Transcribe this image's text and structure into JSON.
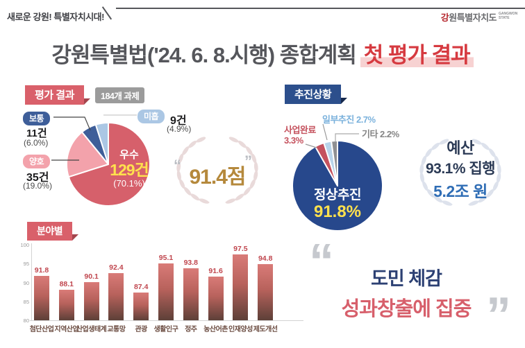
{
  "colors": {
    "accent_red": "#d63a40",
    "badge_red": "#d9606a",
    "badge_navy": "#2c4f8c",
    "badge_gray": "#9b9b9b",
    "highlight_yellow": "#ffe14d",
    "gold": "#b5893c",
    "quote_navy": "#2c4073",
    "quote_red": "#d75f6b"
  },
  "header": {
    "tagline": "새로운 강원! 특별자치시대!",
    "logo_first": "강",
    "logo_rest": "원특별자치도",
    "logo_sub": "GANGWON STATE",
    "title_main": "강원특별법('24. 6. 8.시행) 종합계획",
    "title_accent": "첫 평가 결과"
  },
  "eval": {
    "badge": "평가 결과",
    "tasks_badge": "184개 과제",
    "center": {
      "label": "우수",
      "value": "129건",
      "pct": "(70.1%)"
    },
    "items": [
      {
        "name": "보통",
        "count": "11건",
        "pct": "(6.0%)"
      },
      {
        "name": "양호",
        "count": "35건",
        "pct": "(19.0%)"
      },
      {
        "name": "미흡",
        "count": "9건",
        "pct": "(4.9%)"
      }
    ],
    "score": "91.4점",
    "quote_open": "“",
    "quote_close": "”"
  },
  "progress": {
    "badge": "추진상황",
    "center": {
      "label": "정상추진",
      "value": "91.8%"
    },
    "labels": [
      {
        "name": "사업완료",
        "value": "3.3%"
      },
      {
        "name": "일부추진",
        "value": "2.7%"
      },
      {
        "name": "기타",
        "value": "2.2%"
      }
    ],
    "budget": {
      "line1": "예산",
      "line2": "93.1% 집행",
      "line3": "5.2조 원"
    }
  },
  "field": {
    "badge": "분야별"
  },
  "quote": {
    "open": "“",
    "close": "”",
    "line1": "도민 체감",
    "line2": "성과창출에 집중"
  },
  "chart_data": [
    {
      "type": "pie",
      "title": "평가 결과 (184개 과제)",
      "labels": [
        "우수",
        "양호",
        "보통",
        "미흡"
      ],
      "values": [
        70.1,
        19.0,
        6.0,
        4.9
      ],
      "counts": [
        129,
        35,
        11,
        9
      ],
      "colors": [
        "#d6606b",
        "#f3a2ab",
        "#3e5e99",
        "#abc7e4"
      ],
      "unit": "%"
    },
    {
      "type": "pie",
      "title": "추진상황",
      "labels": [
        "정상추진",
        "사업완료",
        "일부추진",
        "기타"
      ],
      "values": [
        91.8,
        3.3,
        2.7,
        2.2
      ],
      "colors": [
        "#27488c",
        "#c5525e",
        "#b8d4ea",
        "#8f9093"
      ],
      "unit": "%"
    },
    {
      "type": "bar",
      "title": "분야별",
      "categories": [
        "첨단산업",
        "지역산업",
        "산업생태계",
        "교통망",
        "관광",
        "생활인구",
        "정주",
        "농산어촌",
        "인재양성",
        "제도개선"
      ],
      "values": [
        91.8,
        88.1,
        90.1,
        92.4,
        87.4,
        95.1,
        93.8,
        91.6,
        97.5,
        94.8
      ],
      "yticks": [
        100,
        95,
        90,
        85,
        80
      ],
      "ylim": [
        80,
        100
      ],
      "bar_color_top": "#d87272",
      "bar_color_bottom": "#5d4038",
      "value_label_color": "#c0464e"
    }
  ]
}
